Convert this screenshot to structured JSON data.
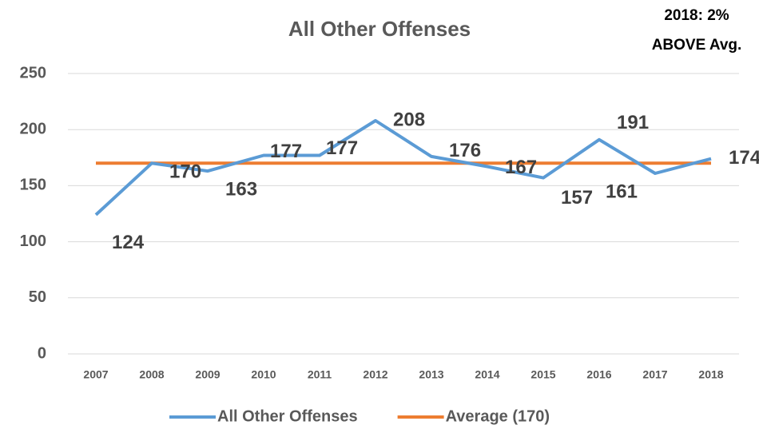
{
  "chart_data": {
    "type": "line",
    "title": "All Other Offenses",
    "annotation": [
      "2018: 2%",
      "ABOVE Avg."
    ],
    "categories": [
      "2007",
      "2008",
      "2009",
      "2010",
      "2011",
      "2012",
      "2013",
      "2014",
      "2015",
      "2016",
      "2017",
      "2018"
    ],
    "series": [
      {
        "name": "All Other Offenses",
        "color": "#5b9bd5",
        "values": [
          124,
          170,
          163,
          177,
          177,
          208,
          176,
          167,
          157,
          191,
          161,
          174
        ],
        "data_labels": true
      },
      {
        "name": "Average (170)",
        "color": "#ed7d31",
        "values": [
          170,
          170,
          170,
          170,
          170,
          170,
          170,
          170,
          170,
          170,
          170,
          170
        ],
        "data_labels": false
      }
    ],
    "ylim": [
      0,
      250
    ],
    "yticks": [
      0,
      50,
      100,
      150,
      200,
      250
    ],
    "grid": true,
    "legend": "bottom"
  }
}
